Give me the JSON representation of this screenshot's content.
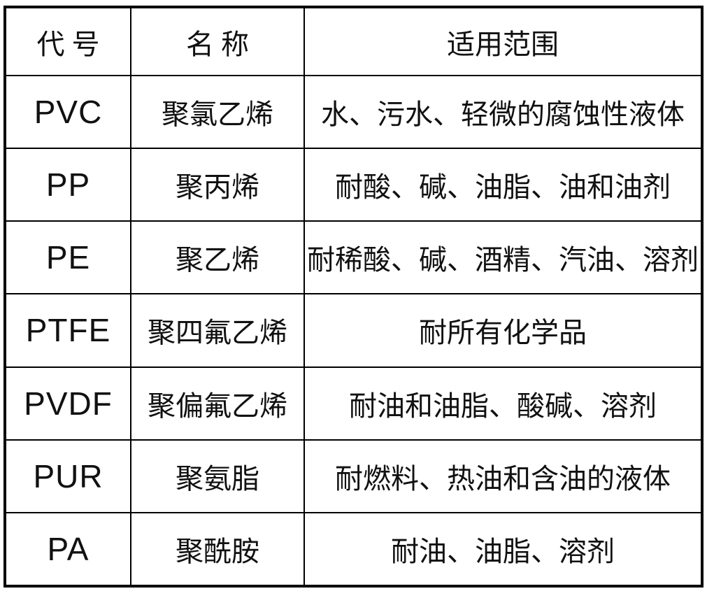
{
  "table": {
    "headers": [
      "代 号",
      "名 称",
      "适用范围"
    ],
    "rows": [
      {
        "code": "PVC",
        "name": "聚氯乙烯",
        "range": "水、污水、轻微的腐蚀性液体"
      },
      {
        "code": "PP",
        "name": "聚丙烯",
        "range": "耐酸、碱、油脂、油和油剂"
      },
      {
        "code": "PE",
        "name": "聚乙烯",
        "range": "耐稀酸、碱、酒精、汽油、溶剂"
      },
      {
        "code": "PTFE",
        "name": "聚四氟乙烯",
        "range": "耐所有化学品"
      },
      {
        "code": "PVDF",
        "name": "聚偏氟乙烯",
        "range": "耐油和油脂、酸碱、溶剂"
      },
      {
        "code": "PUR",
        "name": "聚氨脂",
        "range": "耐燃料、热油和含油的液体"
      },
      {
        "code": "PA",
        "name": "聚酰胺",
        "range": "耐油、油脂、溶剂"
      }
    ],
    "colors": {
      "border": "#000000",
      "background": "#ffffff",
      "text": "#111111"
    }
  }
}
